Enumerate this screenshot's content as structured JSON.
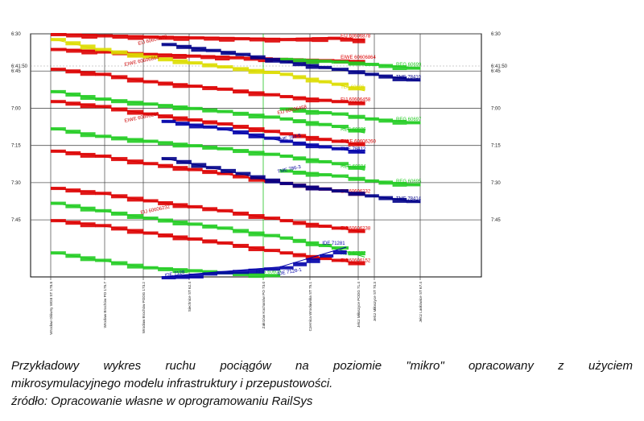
{
  "chart_data": {
    "type": "line",
    "title": "",
    "xlabel": "",
    "ylabel": "",
    "x_unit": "km",
    "y_ticks": [
      "6:30",
      "6:45",
      "7:00",
      "7:15",
      "7:30",
      "7:45"
    ],
    "y_extra_tick": "6:41:50",
    "y_range_minutes": [
      390,
      488
    ],
    "stations": [
      {
        "name": "Wrocław Główny WG8 ST 178.8",
        "km": 178.8,
        "color": "#000000"
      },
      {
        "name": "Wrocław Brochów PO 175.7",
        "km": 175.7,
        "color": "#000000"
      },
      {
        "name": "Wrocław Brochów PODG 173.2",
        "km": 173.2,
        "color": "#000000"
      },
      {
        "name": "Siechnice ST 62.4",
        "km": 62.4,
        "color": "#000000"
      },
      {
        "name": "Zakrzów Kochanów PO 73.0",
        "km": 73.0,
        "color": "#00bb00"
      },
      {
        "name": "Czernica Wrocławska ST 75.1",
        "km": 75.1,
        "color": "#000000"
      },
      {
        "name": "Jelcz Miłoszyce PODG 71.4",
        "km": 71.4,
        "color": "#000000"
      },
      {
        "name": "Jelcz Miłoszyce ST 70.3",
        "km": 70.3,
        "color": "#000000"
      },
      {
        "name": "Jelcz Laskowice ST 67.4",
        "km": 67.4,
        "color": "#000000"
      }
    ],
    "series": [
      {
        "name": "EIJ 60606878",
        "color": "#dd0000",
        "points": [
          [
            0,
            390
          ],
          [
            0.25,
            391
          ],
          [
            0.62,
            392
          ],
          [
            0.75,
            391.5
          ],
          [
            0.85,
            392.5
          ]
        ]
      },
      {
        "name": "EIWE 60606864",
        "color": "#dd0000",
        "points": [
          [
            0,
            396
          ],
          [
            0.25,
            398
          ],
          [
            0.6,
            400
          ],
          [
            0.85,
            401
          ]
        ]
      },
      {
        "name": "EIJ 60606458",
        "color": "#dd0000",
        "points": [
          [
            0,
            404
          ],
          [
            0.12,
            406
          ],
          [
            0.25,
            409
          ],
          [
            0.45,
            412
          ],
          [
            0.62,
            415
          ],
          [
            0.76,
            417
          ],
          [
            0.85,
            418
          ]
        ]
      },
      {
        "name": "EIWE 60606260",
        "color": "#dd0000",
        "points": [
          [
            0,
            417
          ],
          [
            0.12,
            419
          ],
          [
            0.25,
            422
          ],
          [
            0.45,
            426
          ],
          [
            0.62,
            430
          ],
          [
            0.76,
            433
          ],
          [
            0.85,
            435
          ]
        ]
      },
      {
        "name": "EIJ 60606232",
        "color": "#dd0000",
        "points": [
          [
            0,
            437
          ],
          [
            0.12,
            439
          ],
          [
            0.25,
            442
          ],
          [
            0.45,
            446
          ],
          [
            0.62,
            450
          ],
          [
            0.76,
            453
          ],
          [
            0.85,
            455
          ]
        ]
      },
      {
        "name": "EIJ 60606238",
        "color": "#dd0000",
        "points": [
          [
            0,
            452
          ],
          [
            0.12,
            454
          ],
          [
            0.25,
            457
          ],
          [
            0.45,
            461
          ],
          [
            0.62,
            465
          ],
          [
            0.76,
            468
          ],
          [
            0.85,
            470
          ]
        ]
      },
      {
        "name": "EIJ 60606152",
        "color": "#dd0000",
        "points": [
          [
            0,
            465
          ],
          [
            0.12,
            467
          ],
          [
            0.25,
            470
          ],
          [
            0.45,
            474
          ],
          [
            0.62,
            478
          ],
          [
            0.76,
            481
          ],
          [
            0.85,
            483
          ]
        ]
      },
      {
        "name": "TLK 60606",
        "color": "#dddd00",
        "points": [
          [
            0,
            392
          ],
          [
            0.12,
            396
          ],
          [
            0.25,
            399
          ],
          [
            0.45,
            403
          ],
          [
            0.62,
            406
          ],
          [
            0.76,
            410
          ],
          [
            0.85,
            413
          ]
        ]
      },
      {
        "name": "REG 60606",
        "color": "#22cc22",
        "points": [
          [
            0,
            413
          ],
          [
            0.12,
            416
          ],
          [
            0.25,
            418
          ],
          [
            0.45,
            421
          ],
          [
            0.62,
            424
          ],
          [
            0.76,
            427
          ],
          [
            0.85,
            430
          ]
        ]
      },
      {
        "name": "REG 60604",
        "color": "#22cc22",
        "points": [
          [
            0,
            428
          ],
          [
            0.12,
            431
          ],
          [
            0.25,
            433
          ],
          [
            0.45,
            436
          ],
          [
            0.62,
            439
          ],
          [
            0.76,
            442
          ],
          [
            0.85,
            445
          ]
        ]
      },
      {
        "name": "REG 60602",
        "color": "#22cc22",
        "points": [
          [
            0,
            458
          ],
          [
            0.12,
            461
          ],
          [
            0.25,
            464
          ],
          [
            0.45,
            468
          ],
          [
            0.62,
            472
          ],
          [
            0.76,
            476
          ],
          [
            0.85,
            480
          ]
        ]
      },
      {
        "name": "REG 60600",
        "color": "#22cc22",
        "points": [
          [
            0,
            478
          ],
          [
            0.12,
            481
          ],
          [
            0.25,
            484
          ],
          [
            0.45,
            486
          ],
          [
            0.62,
            487.5
          ]
        ]
      },
      {
        "name": "REG 60699",
        "color": "#22cc22",
        "points": [
          [
            0.62,
            400
          ],
          [
            0.76,
            401
          ],
          [
            0.85,
            402
          ],
          [
            1,
            404
          ]
        ]
      },
      {
        "name": "REG 60697",
        "color": "#22cc22",
        "points": [
          [
            0.62,
            420
          ],
          [
            0.76,
            422
          ],
          [
            0.85,
            424
          ],
          [
            1,
            426
          ]
        ]
      },
      {
        "name": "REG 60695",
        "color": "#22cc22",
        "points": [
          [
            0.62,
            445
          ],
          [
            0.76,
            447
          ],
          [
            0.85,
            449
          ],
          [
            1,
            451
          ]
        ]
      },
      {
        "name": "TME 78410",
        "color": "#000088",
        "points": [
          [
            0.3,
            394
          ],
          [
            0.5,
            398
          ],
          [
            0.62,
            401
          ],
          [
            0.76,
            404
          ],
          [
            0.85,
            406
          ],
          [
            1,
            409
          ]
        ]
      },
      {
        "name": "TME 78412",
        "color": "#0000aa",
        "points": [
          [
            0.3,
            425
          ],
          [
            0.45,
            428
          ],
          [
            0.62,
            433
          ],
          [
            0.76,
            436
          ],
          [
            0.85,
            438
          ]
        ]
      },
      {
        "name": "TME 78414",
        "color": "#000088",
        "points": [
          [
            0.3,
            440
          ],
          [
            0.5,
            446
          ],
          [
            0.62,
            450
          ],
          [
            0.76,
            453
          ],
          [
            0.85,
            455
          ],
          [
            1,
            458
          ]
        ]
      },
      {
        "name": "IDE 71281",
        "color": "#0000aa",
        "points": [
          [
            0.3,
            488
          ],
          [
            0.45,
            486
          ],
          [
            0.62,
            484
          ],
          [
            0.8,
            476
          ]
        ]
      }
    ]
  },
  "labels": {
    "red_1": "EIJ 60606878",
    "red_2": "EIWE 60606864",
    "red_3": "EIJ 60606458",
    "red_4": "EIWE 60606260",
    "red_5": "EIJ 60606232",
    "blue_1": "TME 784-5",
    "blue_2": "TME 786-3",
    "blue_3": "IDE 7128-1",
    "blue_4": "IDE 7128"
  },
  "caption": {
    "line1": "Przykładowy wykres ruchu pociągów na poziomie \"mikro\" opracowany z użyciem",
    "line2": "mikrosymulacyjnego modelu infrastruktury i przepustowości.",
    "line3": "źródło: Opracowanie własne w oprogramowaniu RailSys"
  }
}
